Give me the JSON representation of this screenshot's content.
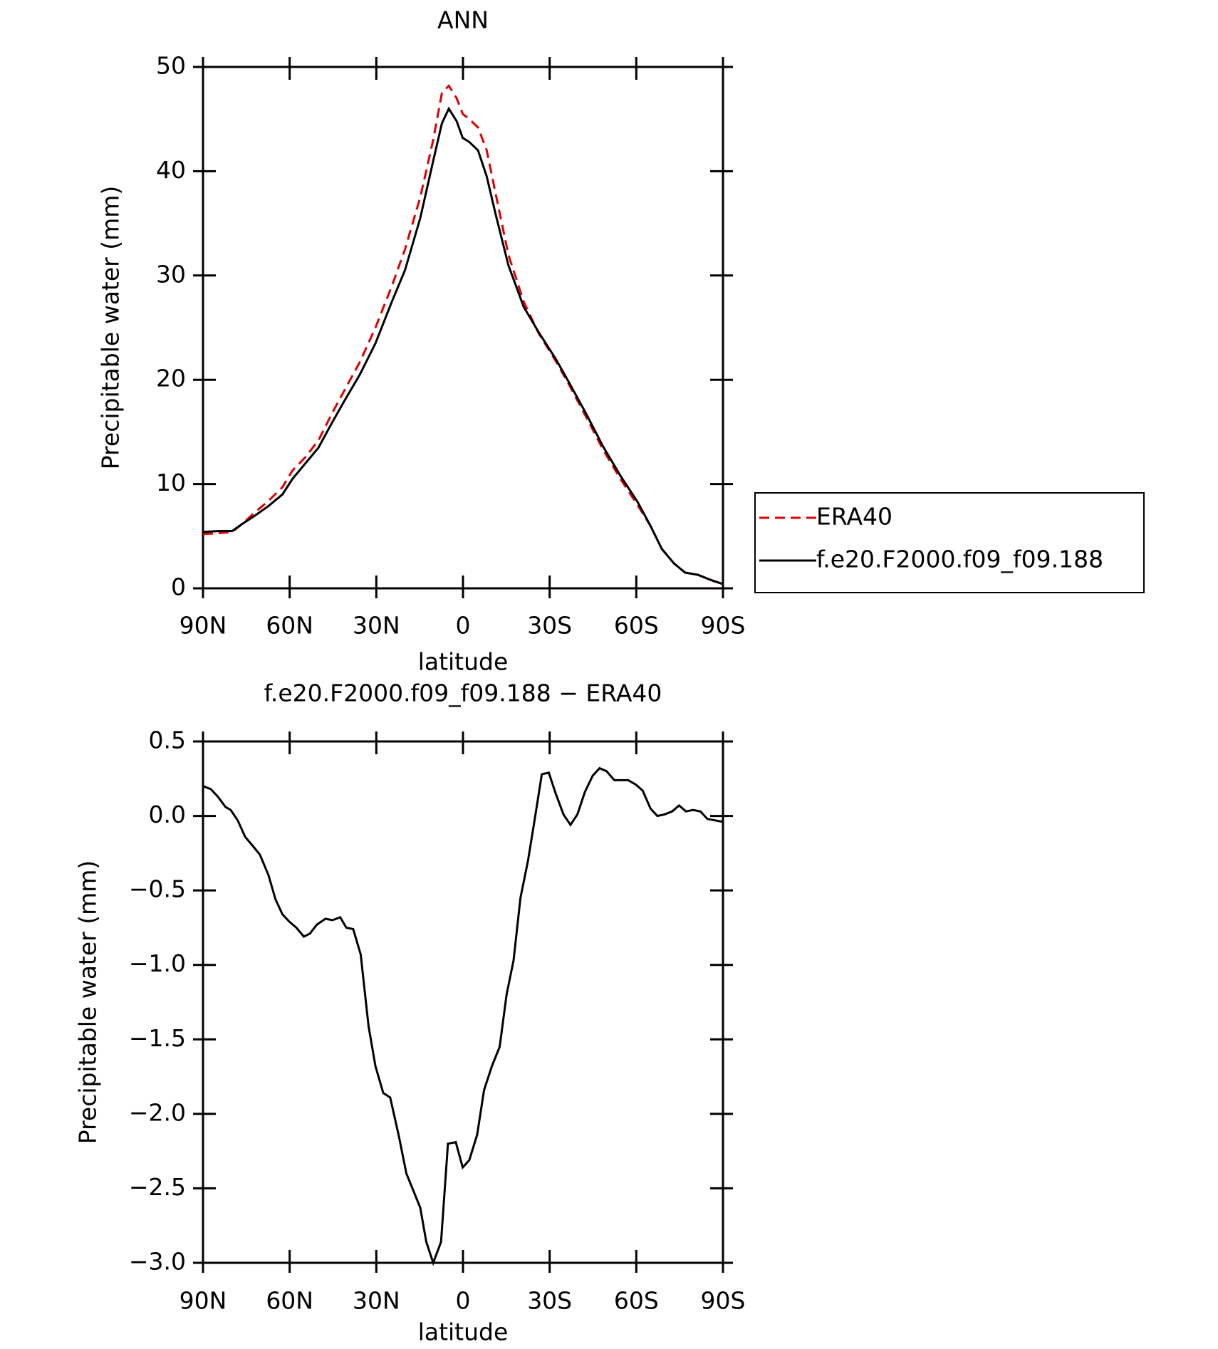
{
  "chart_data": [
    {
      "type": "line",
      "title": "ANN",
      "xlabel": "latitude",
      "ylabel": "Precipitable water (mm)",
      "x": [
        90,
        84.3,
        79.9,
        76.3,
        72.4,
        67.3,
        62.5,
        59,
        54.5,
        50,
        45.5,
        41,
        35.7,
        30.3,
        24.6,
        20.1,
        14.8,
        10.3,
        7.3,
        4.9,
        2.2,
        0.1,
        -2.2,
        -5.2,
        -8.2,
        -11.2,
        -15.7,
        -21,
        -26.1,
        -32.1,
        -36.6,
        -42.5,
        -48.5,
        -54.5,
        -60.4,
        -64.9,
        -68.8,
        -73,
        -76.9,
        -81.3,
        -85.8,
        -90
      ],
      "series": [
        {
          "name": "ERA40",
          "color": "#e00000",
          "linestyle": "dashed",
          "values": [
            5.2,
            5.3,
            5.4,
            6.2,
            7.2,
            8.4,
            9.7,
            11.3,
            12.6,
            14.2,
            16.7,
            19.0,
            21.7,
            25.0,
            29.0,
            32.5,
            37.5,
            43.0,
            47.5,
            48.2,
            47.0,
            45.5,
            45.0,
            44.2,
            42.0,
            38.0,
            32.0,
            27.5,
            24.5,
            21.8,
            19.6,
            16.5,
            13.3,
            10.5,
            8.0,
            6.0,
            3.8,
            2.4,
            1.5,
            1.3,
            0.8,
            0.4
          ]
        },
        {
          "name": "f.e20.F2000.f09_f09.188",
          "color": "#000000",
          "linestyle": "solid",
          "values": [
            5.4,
            5.5,
            5.5,
            6.2,
            6.9,
            7.9,
            9.0,
            10.5,
            12.0,
            13.5,
            15.8,
            18.0,
            20.5,
            23.5,
            27.5,
            30.5,
            35.5,
            41.0,
            44.6,
            46.0,
            44.8,
            43.2,
            42.8,
            42.0,
            39.5,
            36.0,
            31.0,
            27.0,
            24.6,
            22.0,
            19.8,
            16.8,
            13.6,
            10.8,
            8.3,
            6.0,
            3.8,
            2.4,
            1.5,
            1.3,
            0.8,
            0.4
          ]
        }
      ],
      "xlim": [
        90,
        -90
      ],
      "xticks": [
        {
          "value": 90,
          "label": "90N"
        },
        {
          "value": 60,
          "label": "60N"
        },
        {
          "value": 30,
          "label": "30N"
        },
        0,
        {
          "value": -30,
          "label": "30S"
        },
        {
          "value": -60,
          "label": "60S"
        },
        {
          "value": -90,
          "label": "90S"
        }
      ],
      "ylim": [
        0,
        50
      ],
      "yticks": [
        0,
        10,
        20,
        30,
        40,
        50
      ],
      "legend": "right"
    },
    {
      "type": "line",
      "title": "f.e20.F2000.f09_f09.188 − ERA40",
      "xlabel": "latitude",
      "ylabel": "Precipitable water (mm)",
      "x": [
        90,
        87.3,
        84.9,
        82.2,
        80.4,
        78,
        75.4,
        72.4,
        70.3,
        67.3,
        64.9,
        62.5,
        60.1,
        57.7,
        55.1,
        53,
        50.6,
        47.6,
        45.2,
        42.5,
        40.4,
        38,
        35.4,
        32.7,
        30.3,
        27.6,
        25.2,
        22.2,
        19.6,
        14.8,
        12.7,
        10.3,
        7.6,
        5.2,
        2.5,
        0.1,
        -2.2,
        -4.9,
        -7.3,
        -10,
        -12.7,
        -15.1,
        -17.5,
        -19.9,
        -22.5,
        -24.6,
        -27.3,
        -29.7,
        -32.1,
        -34.8,
        -37.2,
        -39.6,
        -42.2,
        -44.9,
        -47.3,
        -49.7,
        -52.4,
        -57.2,
        -59.9,
        -62.2,
        -64.9,
        -67.3,
        -69.7,
        -72.4,
        -74.8,
        -77.2,
        -79.6,
        -82.2,
        -84.6,
        -90
      ],
      "values": [
        0.2,
        0.18,
        0.13,
        0.06,
        0.04,
        -0.03,
        -0.14,
        -0.21,
        -0.26,
        -0.4,
        -0.56,
        -0.66,
        -0.71,
        -0.75,
        -0.81,
        -0.79,
        -0.73,
        -0.69,
        -0.7,
        -0.68,
        -0.75,
        -0.76,
        -0.93,
        -1.41,
        -1.68,
        -1.86,
        -1.89,
        -2.15,
        -2.4,
        -2.63,
        -2.86,
        -3.0,
        -2.86,
        -2.2,
        -2.19,
        -2.36,
        -2.31,
        -2.14,
        -1.84,
        -1.68,
        -1.55,
        -1.2,
        -0.97,
        -0.55,
        -0.3,
        -0.05,
        0.28,
        0.29,
        0.15,
        0.01,
        -0.06,
        0.01,
        0.16,
        0.27,
        0.32,
        0.3,
        0.24,
        0.24,
        0.21,
        0.17,
        0.05,
        0.0,
        0.01,
        0.03,
        0.07,
        0.03,
        0.04,
        0.03,
        -0.02,
        -0.04
      ],
      "color": "#000000",
      "xlim": [
        90,
        -90
      ],
      "xticks": [
        {
          "value": 90,
          "label": "90N"
        },
        {
          "value": 60,
          "label": "60N"
        },
        {
          "value": 30,
          "label": "30N"
        },
        0,
        {
          "value": -30,
          "label": "30S"
        },
        {
          "value": -60,
          "label": "60S"
        },
        {
          "value": -90,
          "label": "90S"
        }
      ],
      "ylim": [
        -3.0,
        0.5
      ],
      "yticks": [
        {
          "value": -3.0,
          "label": "−3.0"
        },
        {
          "value": -2.5,
          "label": "−2.5"
        },
        {
          "value": -2.0,
          "label": "−2.0"
        },
        {
          "value": -1.5,
          "label": "−1.5"
        },
        {
          "value": -1.0,
          "label": "−1.0"
        },
        {
          "value": -0.5,
          "label": "−0.5"
        },
        {
          "value": 0,
          "label": "0.0"
        },
        0.5
      ]
    }
  ]
}
